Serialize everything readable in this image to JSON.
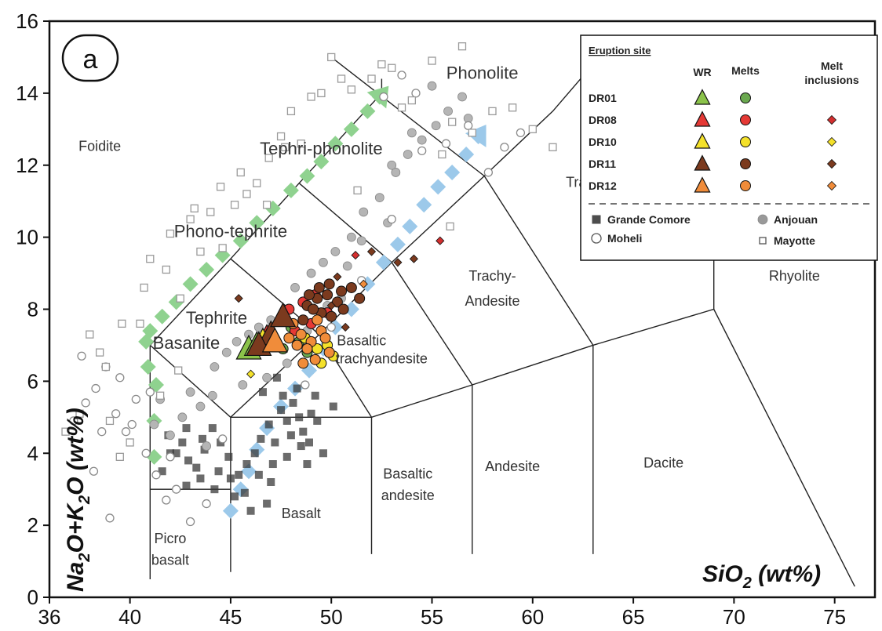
{
  "chart_data": {
    "type": "scatter",
    "panel_label": "a",
    "xlabel": "SiO2 (wt%)",
    "ylabel": "Na2O+K2O (wt%)",
    "xlim": [
      36,
      77
    ],
    "ylim": [
      0,
      16
    ],
    "x_ticks": [
      "36",
      "40",
      "45",
      "50",
      "55",
      "60",
      "65",
      "70",
      "75"
    ],
    "y_ticks": [
      "0",
      "2",
      "4",
      "6",
      "8",
      "10",
      "12",
      "14",
      "16"
    ],
    "grid": false,
    "fields": [
      {
        "label": "Foidite",
        "x": 38.5,
        "y": 12.4
      },
      {
        "label": "Phonolite",
        "x": 57.5,
        "y": 14.4
      },
      {
        "label": "Tephri-phonolite",
        "x": 49.5,
        "y": 12.3
      },
      {
        "label": "Trachyte",
        "x": 63,
        "y": 11.4
      },
      {
        "label": "Phono-tephrite",
        "x": 45,
        "y": 10.0
      },
      {
        "label": "Rhyolite",
        "x": 73,
        "y": 8.8
      },
      {
        "label": "Trachy-",
        "x": 58,
        "y": 8.8
      },
      {
        "label": "Andesite",
        "x": 58,
        "y": 8.1
      },
      {
        "label": "Tephrite",
        "x": 44.3,
        "y": 7.6
      },
      {
        "label": "Basanite",
        "x": 42.8,
        "y": 6.9
      },
      {
        "label": "Basaltic",
        "x": 51.5,
        "y": 7.0
      },
      {
        "label": "trachyandesite",
        "x": 52.5,
        "y": 6.5
      },
      {
        "label": "Basaltic",
        "x": 53.8,
        "y": 3.3
      },
      {
        "label": "andesite",
        "x": 53.8,
        "y": 2.7
      },
      {
        "label": "Andesite",
        "x": 59,
        "y": 3.5
      },
      {
        "label": "Dacite",
        "x": 66.5,
        "y": 3.6
      },
      {
        "label": "Basalt",
        "x": 48.5,
        "y": 2.2
      },
      {
        "label": "Picro",
        "x": 42,
        "y": 1.5
      },
      {
        "label": "basalt",
        "x": 42,
        "y": 0.9
      }
    ],
    "boundaries": [
      [
        [
          41,
          0.5
        ],
        [
          41,
          7
        ],
        [
          45,
          9.4
        ],
        [
          48.4,
          11.5
        ],
        [
          52.5,
          14
        ],
        [
          52.5,
          14.4
        ]
      ],
      [
        [
          41,
          7
        ],
        [
          45,
          5
        ],
        [
          45,
          1
        ],
        [
          45,
          0.7
        ]
      ],
      [
        [
          41,
          3
        ],
        [
          45,
          3
        ]
      ],
      [
        [
          45,
          5
        ],
        [
          52,
          5
        ],
        [
          57,
          5.9
        ],
        [
          63,
          7
        ],
        [
          69,
          8
        ],
        [
          76,
          0.3
        ]
      ],
      [
        [
          49.4,
          7.3
        ],
        [
          45,
          9.4
        ]
      ],
      [
        [
          52,
          5
        ],
        [
          49.4,
          7.3
        ],
        [
          53,
          9.3
        ],
        [
          57.6,
          11.7
        ],
        [
          61,
          13.5
        ],
        [
          63,
          14.8
        ]
      ],
      [
        [
          53,
          9.3
        ],
        [
          48.4,
          11.5
        ]
      ],
      [
        [
          57.6,
          11.7
        ],
        [
          50,
          15
        ]
      ],
      [
        [
          45,
          5
        ],
        [
          49.4,
          7.3
        ]
      ],
      [
        [
          52,
          5
        ],
        [
          52,
          1.2
        ]
      ],
      [
        [
          57,
          5.9
        ],
        [
          57,
          1.2
        ]
      ],
      [
        [
          63,
          7
        ],
        [
          63,
          1.2
        ]
      ],
      [
        [
          57,
          5.9
        ],
        [
          53,
          9.3
        ]
      ],
      [
        [
          63,
          7
        ],
        [
          57.6,
          11.7
        ]
      ],
      [
        [
          69,
          8
        ],
        [
          69,
          15
        ]
      ]
    ],
    "trends": [
      {
        "name": "",
        "color": "#8fd28f",
        "x": [
          41.2,
          41.2,
          41.3,
          40.9,
          40.8,
          41.0,
          41.6,
          42.3,
          43.0,
          43.8,
          44.6,
          45.5,
          46.3,
          47.1,
          48.0,
          48.8,
          49.5,
          50.2,
          51.0,
          51.8,
          52.4
        ],
        "y": [
          3.9,
          4.9,
          5.9,
          6.4,
          7.1,
          7.4,
          7.8,
          8.2,
          8.7,
          9.1,
          9.5,
          9.9,
          10.4,
          10.8,
          11.3,
          11.7,
          12.1,
          12.6,
          13.0,
          13.5,
          13.9
        ]
      },
      {
        "name": "",
        "color": "#9cc9ea",
        "x": [
          45.0,
          45.5,
          45.9,
          46.3,
          46.8,
          47.5,
          48.2,
          48.9,
          49.6,
          50.2,
          51.0,
          51.8,
          52.6,
          53.3,
          53.9,
          54.6,
          55.3,
          56.0,
          56.7,
          57.3
        ],
        "y": [
          2.4,
          3.0,
          3.5,
          4.1,
          4.7,
          5.3,
          5.8,
          6.3,
          6.9,
          7.5,
          8.0,
          8.7,
          9.3,
          9.8,
          10.3,
          10.9,
          11.4,
          11.8,
          12.3,
          12.8
        ]
      }
    ],
    "series": [
      {
        "name": "Grande Comore",
        "marker": "filled-square",
        "color": "#3a3a3a",
        "x": [
          47.8,
          48.1,
          48.4,
          48.0,
          47.5,
          48.6,
          49.0,
          47.2,
          46.9,
          48.9,
          49.3,
          48.3,
          47.6,
          46.5,
          46.2,
          45.8,
          45.4,
          44.9,
          44.5,
          44.1,
          43.7,
          43.3,
          42.9,
          42.6,
          42.3,
          41.9,
          41.6,
          42.8,
          43.5,
          44.2,
          45.0,
          45.7,
          46.4,
          47.1,
          47.8,
          48.5,
          49.2,
          46.8,
          46.0,
          45.2,
          44.4,
          43.6,
          42.8,
          42.0,
          47.3,
          48.8,
          49.6,
          50.1,
          47.0,
          46.6
        ],
        "y": [
          4.9,
          5.4,
          5.0,
          4.5,
          5.2,
          4.6,
          5.1,
          4.3,
          4.8,
          4.3,
          4.9,
          5.8,
          5.6,
          4.4,
          4.0,
          3.7,
          3.4,
          3.9,
          4.3,
          4.7,
          4.1,
          3.6,
          3.8,
          4.3,
          4.0,
          4.5,
          3.5,
          3.1,
          3.3,
          3.0,
          3.3,
          2.9,
          3.4,
          3.7,
          3.9,
          4.2,
          5.6,
          2.6,
          2.4,
          2.8,
          3.5,
          4.4,
          4.7,
          4.0,
          6.1,
          3.7,
          4.0,
          5.3,
          3.2,
          5.7
        ]
      },
      {
        "name": "Anjouan",
        "marker": "filled-circle",
        "color": "#b5b5b5",
        "x": [
          44.2,
          44.8,
          45.3,
          45.9,
          46.4,
          47.0,
          44.1,
          43.5,
          43.0,
          42.6,
          42.0,
          41.5,
          48.2,
          49.0,
          49.6,
          50.2,
          51.0,
          51.6,
          52.4,
          53.2,
          53.8,
          54.5,
          55.2,
          55.8,
          56.5,
          52.8,
          51.5,
          50.8,
          53.0,
          54.0,
          49.8,
          48.8,
          46.8,
          45.6,
          41.2,
          43.8,
          47.8,
          50.5,
          55.0,
          56.8
        ],
        "y": [
          6.4,
          6.8,
          7.1,
          7.3,
          7.5,
          7.7,
          5.6,
          5.3,
          5.7,
          5.0,
          4.5,
          5.5,
          8.6,
          9.0,
          9.3,
          9.6,
          10.0,
          10.7,
          11.1,
          11.8,
          12.3,
          12.7,
          13.1,
          13.5,
          13.9,
          10.4,
          9.9,
          9.2,
          12.0,
          12.9,
          8.1,
          7.4,
          6.1,
          5.9,
          4.8,
          4.2,
          6.5,
          8.3,
          14.2,
          13.3
        ]
      },
      {
        "name": "Moheli",
        "marker": "open-circle",
        "color": "#8a8a8a",
        "x": [
          37.2,
          37.8,
          38.3,
          38.8,
          39.3,
          39.8,
          40.3,
          40.8,
          41.3,
          41.8,
          42.3,
          38.2,
          37.6,
          39.0,
          40.1,
          41.0,
          42.0,
          43.0,
          43.8,
          44.6,
          48.7,
          50.0,
          51.5,
          53.0,
          54.5,
          55.7,
          56.8,
          57.8,
          58.6,
          59.4,
          52.6,
          53.5,
          54.2,
          39.5,
          38.6
        ],
        "y": [
          4.9,
          5.4,
          5.8,
          6.4,
          5.1,
          4.6,
          5.5,
          4.0,
          3.4,
          2.7,
          3.0,
          3.5,
          6.7,
          2.2,
          4.8,
          5.7,
          3.9,
          2.1,
          2.6,
          4.4,
          5.9,
          7.5,
          8.8,
          10.5,
          12.4,
          12.6,
          13.1,
          11.8,
          12.5,
          12.9,
          13.9,
          14.5,
          14.0,
          6.1,
          4.6
        ]
      },
      {
        "name": "Mayotte",
        "marker": "open-square",
        "color": "#9a9a9a",
        "x": [
          38.0,
          38.5,
          39.0,
          39.5,
          40.0,
          40.5,
          41.0,
          41.5,
          42.0,
          42.5,
          43.0,
          43.5,
          44.0,
          44.6,
          45.2,
          45.8,
          46.3,
          46.9,
          47.5,
          48.0,
          48.5,
          49.0,
          50.0,
          51.0,
          52.0,
          53.0,
          54.0,
          55.0,
          56.0,
          57.0,
          58.0,
          59.0,
          60.0,
          61.0,
          56.5,
          55.5,
          53.5,
          52.5,
          50.5,
          49.5,
          47.7,
          46.8,
          45.5,
          44.5,
          43.2,
          41.8,
          40.7,
          39.6,
          38.8,
          37.5,
          36.8,
          42.4,
          51.3,
          55.9
        ],
        "y": [
          7.3,
          6.8,
          4.9,
          3.9,
          4.3,
          7.6,
          9.4,
          5.6,
          10.1,
          8.3,
          10.5,
          9.6,
          10.7,
          9.7,
          10.9,
          11.2,
          11.5,
          12.2,
          12.8,
          13.5,
          12.6,
          13.9,
          15.0,
          14.1,
          14.4,
          14.7,
          13.8,
          14.9,
          13.2,
          12.9,
          13.5,
          13.6,
          13.0,
          12.5,
          15.3,
          12.3,
          13.6,
          14.8,
          14.4,
          14.0,
          12.5,
          10.9,
          11.8,
          11.4,
          10.8,
          9.1,
          8.6,
          7.6,
          6.4,
          5.1,
          4.6,
          6.3,
          11.3,
          10.3
        ]
      }
    ],
    "sample_points": [
      {
        "name": "DR01 WR",
        "marker": "triangle",
        "color": "#8bc34a",
        "x": [
          45.9,
          46.3
        ],
        "y": [
          6.9,
          7.0
        ]
      },
      {
        "name": "DR08 WR",
        "marker": "triangle",
        "color": "#e53935",
        "x": [
          46.8
        ],
        "y": [
          7.2
        ]
      },
      {
        "name": "DR10 WR",
        "marker": "triangle",
        "color": "#f4e12a",
        "x": [
          46.6
        ],
        "y": [
          7.1
        ]
      },
      {
        "name": "DR11 WR",
        "marker": "triangle",
        "color": "#7b3a1e",
        "x": [
          47.0,
          47.6,
          46.4
        ],
        "y": [
          7.3,
          7.8,
          7.0
        ]
      },
      {
        "name": "DR12 WR",
        "marker": "triangle",
        "color": "#f08c3a",
        "x": [
          47.2
        ],
        "y": [
          7.1
        ]
      },
      {
        "name": "DR01 Melts",
        "marker": "circle",
        "color": "#6aa84f",
        "x": [
          48.0,
          48.4,
          47.6,
          48.8
        ],
        "y": [
          7.5,
          7.1,
          6.9,
          6.8
        ]
      },
      {
        "name": "DR08 Melts",
        "marker": "circle",
        "color": "#e53935",
        "x": [
          48.6,
          49.2,
          49.8,
          49.0,
          48.2,
          47.9
        ],
        "y": [
          8.2,
          8.4,
          7.9,
          7.6,
          7.4,
          8.0
        ]
      },
      {
        "name": "DR10 Melts",
        "marker": "circle",
        "color": "#f4e12a",
        "x": [
          49.3,
          49.8,
          50.1,
          48.7,
          49.5
        ],
        "y": [
          6.9,
          7.0,
          6.7,
          7.2,
          6.5
        ]
      },
      {
        "name": "DR11 Melts",
        "marker": "circle",
        "color": "#7b3a1e",
        "x": [
          48.8,
          49.3,
          49.8,
          50.3,
          50.0,
          49.5,
          49.1,
          48.6,
          50.6,
          51.0,
          50.5,
          49.9,
          49.4,
          48.9,
          51.4
        ],
        "y": [
          8.1,
          8.3,
          8.4,
          8.2,
          7.8,
          7.9,
          8.0,
          7.7,
          8.0,
          8.6,
          8.5,
          8.7,
          8.6,
          8.4,
          8.3
        ]
      },
      {
        "name": "DR12 Melts",
        "marker": "circle",
        "color": "#f08c3a",
        "x": [
          48.5,
          49.0,
          49.5,
          48.8,
          49.2,
          48.3,
          49.7,
          48.6,
          49.9,
          48.1,
          49.3,
          47.9
        ],
        "y": [
          7.3,
          7.1,
          7.4,
          6.9,
          6.6,
          7.0,
          7.2,
          6.5,
          6.8,
          7.6,
          7.7,
          7.2
        ]
      },
      {
        "name": "DR08 Melt inclusions",
        "marker": "diamond",
        "color": "#d32f2f",
        "x": [
          55.4,
          51.2
        ],
        "y": [
          9.9,
          9.5
        ]
      },
      {
        "name": "DR10 Melt inclusions",
        "marker": "diamond",
        "color": "#f4e12a",
        "x": [
          46.0
        ],
        "y": [
          6.2
        ]
      },
      {
        "name": "DR11 Melt inclusions",
        "marker": "diamond",
        "color": "#7b3a1e",
        "x": [
          45.4,
          50.3,
          52.0,
          53.3,
          54.1,
          50.0,
          50.7
        ],
        "y": [
          8.3,
          8.9,
          9.6,
          9.3,
          9.4,
          8.1,
          7.5
        ]
      },
      {
        "name": "DR12 Melt inclusions",
        "marker": "diamond",
        "color": "#f08c3a",
        "x": [
          51.6
        ],
        "y": [
          8.7
        ]
      }
    ],
    "legend": {
      "position": "top-right",
      "title": "Eruption site",
      "columns": [
        "WR",
        "Melts",
        "Melt",
        "inclusions"
      ],
      "rows": [
        {
          "label": "DR01",
          "color": "#8bc34a",
          "melt_color": "#6aa84f",
          "inclusion": false
        },
        {
          "label": "DR08",
          "color": "#e53935",
          "melt_color": "#e53935",
          "inclusion": true,
          "inc_color": "#d32f2f"
        },
        {
          "label": "DR10",
          "color": "#f4e12a",
          "melt_color": "#f4e12a",
          "inclusion": true,
          "inc_color": "#f4e12a"
        },
        {
          "label": "DR11",
          "color": "#7b3a1e",
          "melt_color": "#7b3a1e",
          "inclusion": true,
          "inc_color": "#7b3a1e"
        },
        {
          "label": "DR12",
          "color": "#f08c3a",
          "melt_color": "#f08c3a",
          "inclusion": true,
          "inc_color": "#f08c3a"
        }
      ],
      "sites": [
        "Grande Comore",
        "Anjouan",
        "Moheli",
        "Mayotte"
      ]
    }
  }
}
